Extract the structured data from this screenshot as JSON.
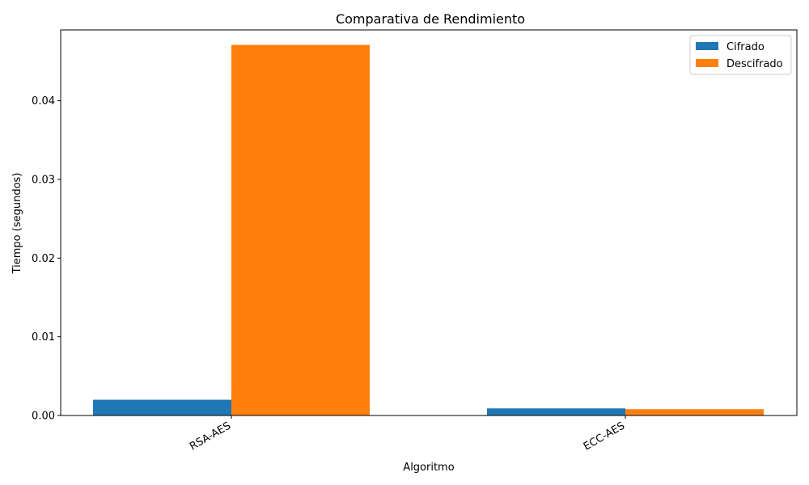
{
  "chart_data": {
    "type": "bar",
    "title": "Comparativa de Rendimiento",
    "xlabel": "Algoritmo",
    "ylabel": "Tiempo (segundos)",
    "categories": [
      "RSA-AES",
      "ECC-AES"
    ],
    "series": [
      {
        "name": "Cifrado",
        "color": "#1f77b4",
        "values": [
          0.002,
          0.0009
        ]
      },
      {
        "name": "Descifrado",
        "color": "#ff7f0e",
        "values": [
          0.0471,
          0.0008
        ]
      }
    ],
    "ylim": [
      0,
      0.049
    ],
    "yticks": [
      0.0,
      0.01,
      0.02,
      0.03,
      0.04
    ],
    "ytick_labels": [
      "0.00",
      "0.01",
      "0.02",
      "0.03",
      "0.04"
    ],
    "legend": "top-right",
    "grid": false
  }
}
